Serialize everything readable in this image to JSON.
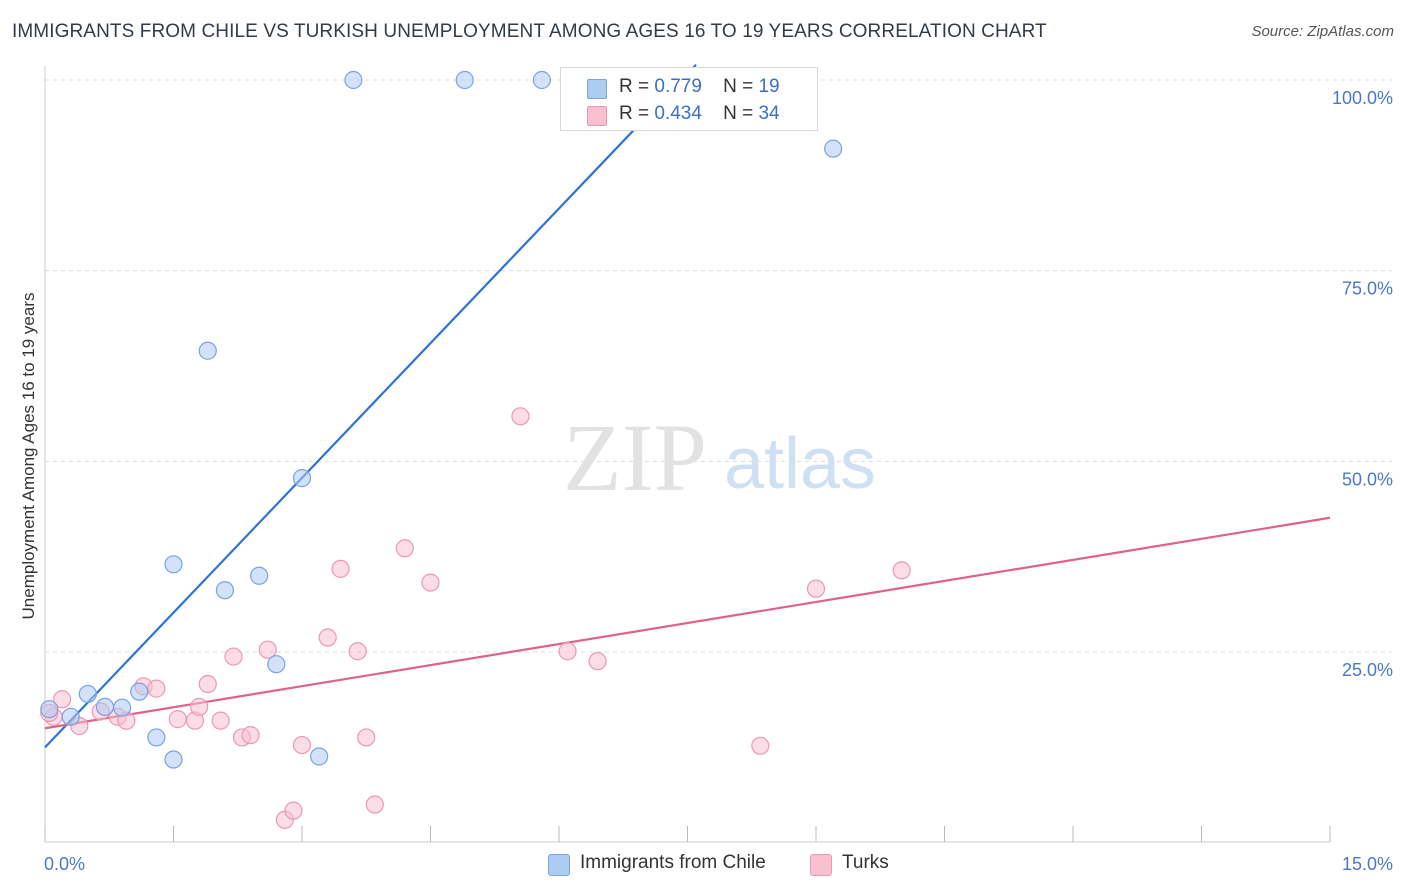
{
  "title": "IMMIGRANTS FROM CHILE VS TURKISH UNEMPLOYMENT AMONG AGES 16 TO 19 YEARS CORRELATION CHART",
  "source": "Source: ZipAtlas.com",
  "watermark": {
    "zip": "ZIP",
    "atlas": "atlas"
  },
  "legend": {
    "rows": [
      {
        "r_label": "R =",
        "r_value": "0.779",
        "n_label": "N =",
        "n_value": "19"
      },
      {
        "r_label": "R =",
        "r_value": "0.434",
        "n_label": "N =",
        "n_value": "34"
      }
    ]
  },
  "colors": {
    "chile_fill": "#aecbf2",
    "chile_stroke": "#7aa3e0",
    "chile_line": "#2f72d2",
    "turks_fill": "#f9c0d2",
    "turks_stroke": "#ec98b4",
    "turks_line": "#e0608e",
    "grid": "#dcdcdc",
    "axis_text": "#4a78c8"
  },
  "chart_data": {
    "type": "scatter",
    "xlabel": "",
    "ylabel": "Unemployment Among Ages 16 to 19 years",
    "xlim": [
      0,
      15
    ],
    "ylim": [
      0,
      105
    ],
    "x_tick_labels": [
      "0.0%",
      "15.0%"
    ],
    "y_ticks": [
      25,
      50,
      75,
      100
    ],
    "y_tick_labels": [
      "25.0%",
      "50.0%",
      "75.0%",
      "100.0%"
    ],
    "grid": true,
    "series": [
      {
        "name": "Immigrants from Chile",
        "points": [
          [
            0.05,
            17.5
          ],
          [
            0.3,
            16.5
          ],
          [
            0.5,
            19.5
          ],
          [
            0.7,
            17.8
          ],
          [
            0.9,
            17.7
          ],
          [
            1.1,
            19.8
          ],
          [
            1.3,
            13.8
          ],
          [
            1.5,
            10.9
          ],
          [
            1.5,
            36.5
          ],
          [
            1.9,
            64.5
          ],
          [
            2.1,
            33.1
          ],
          [
            2.5,
            35.0
          ],
          [
            2.7,
            23.4
          ],
          [
            3.0,
            47.8
          ],
          [
            3.2,
            11.3
          ],
          [
            3.6,
            100.0
          ],
          [
            4.9,
            100.0
          ],
          [
            5.8,
            100.0
          ],
          [
            9.2,
            91.0
          ]
        ],
        "trend": {
          "x": [
            0,
            7.6
          ],
          "y": [
            12.5,
            102.0
          ]
        }
      },
      {
        "name": "Turks",
        "points": [
          [
            0.1,
            16.5
          ],
          [
            0.2,
            18.8
          ],
          [
            0.4,
            15.3
          ],
          [
            0.65,
            17.2
          ],
          [
            0.85,
            16.5
          ],
          [
            0.95,
            16.0
          ],
          [
            1.15,
            20.5
          ],
          [
            1.3,
            20.2
          ],
          [
            1.55,
            16.2
          ],
          [
            1.75,
            16.0
          ],
          [
            1.8,
            17.8
          ],
          [
            1.9,
            20.8
          ],
          [
            2.05,
            16.0
          ],
          [
            2.2,
            24.4
          ],
          [
            2.3,
            13.8
          ],
          [
            2.4,
            14.1
          ],
          [
            2.6,
            25.3
          ],
          [
            2.8,
            3.0
          ],
          [
            2.9,
            4.2
          ],
          [
            3.0,
            12.8
          ],
          [
            3.3,
            26.9
          ],
          [
            3.45,
            35.9
          ],
          [
            3.65,
            25.1
          ],
          [
            3.75,
            13.8
          ],
          [
            3.85,
            5.0
          ],
          [
            4.2,
            38.6
          ],
          [
            4.5,
            34.1
          ],
          [
            5.55,
            55.9
          ],
          [
            6.1,
            25.1
          ],
          [
            6.45,
            23.8
          ],
          [
            8.35,
            12.7
          ],
          [
            9.0,
            33.3
          ],
          [
            10.0,
            35.7
          ],
          [
            0.05,
            17.0
          ]
        ],
        "trend": {
          "x": [
            0,
            15
          ],
          "y": [
            15.0,
            42.6
          ]
        }
      }
    ]
  }
}
